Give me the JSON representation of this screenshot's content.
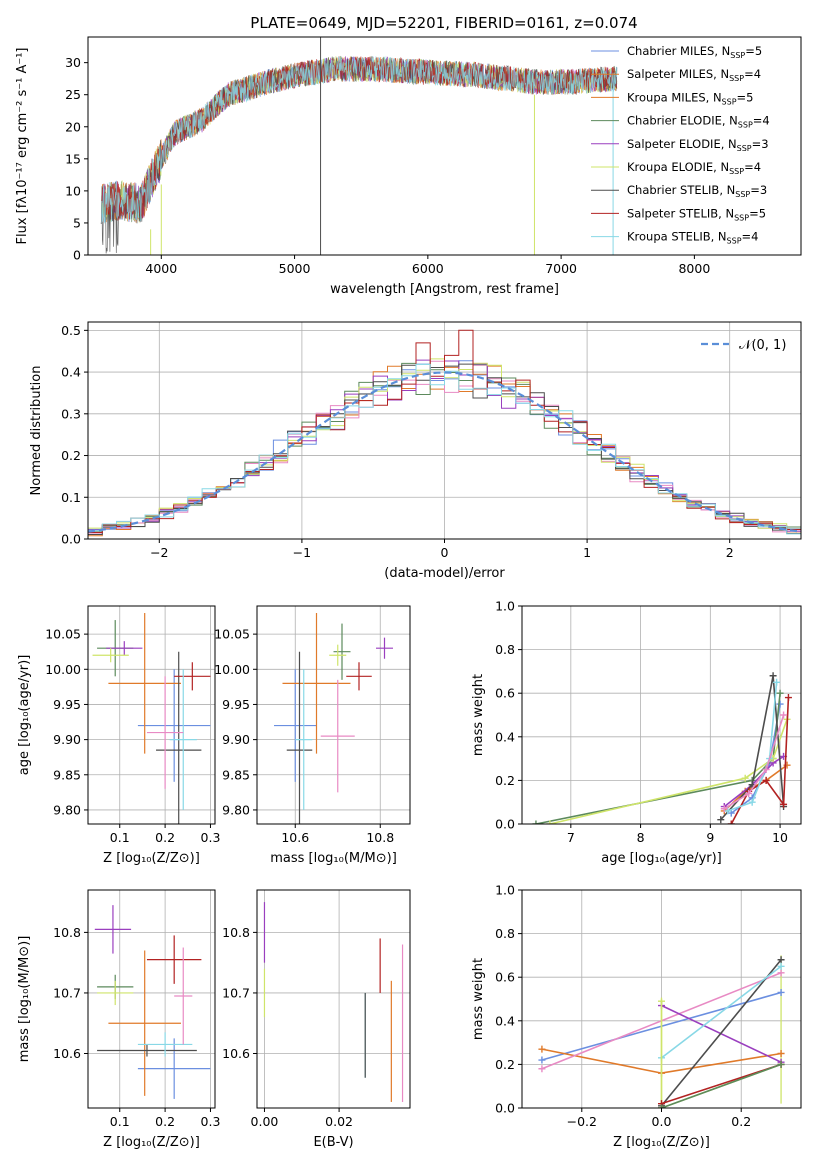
{
  "figure": {
    "title": "PLATE=0649, MJD=52201, FIBERID=0161, z=0.074"
  },
  "palette": {
    "models": [
      "#6b8fe0",
      "#e07a2a",
      "#e07a2a",
      "#5c8a5c",
      "#9a3fbf",
      "#cfe46a",
      "#4d4d4d",
      "#b22222",
      "#88d8e6"
    ],
    "extra": [
      "#e88ac4",
      "#999999"
    ],
    "gauss": "#5a8ed8",
    "grid": "#b0b0b0"
  },
  "chart_data": [
    {
      "id": "spectrum",
      "type": "line",
      "xlabel": "wavelength [Angstrom, rest frame]",
      "ylabel": "Flux [fλ10⁻¹⁷ erg cm⁻² s⁻¹ A⁻¹]",
      "xlim": [
        3450,
        8800
      ],
      "ylim": [
        0,
        34
      ],
      "xticks": [
        4000,
        5000,
        6000,
        7000,
        8000
      ],
      "yticks": [
        0,
        5,
        10,
        15,
        20,
        25,
        30
      ],
      "grid": false,
      "legend_position": "top-right",
      "legend": [
        {
          "label": "Chabrier MILES, N",
          "sub": "SSP",
          "value": "=5"
        },
        {
          "label": "Salpeter MILES, N",
          "sub": "SSP",
          "value": "=4"
        },
        {
          "label": "Kroupa MILES, N",
          "sub": "SSP",
          "value": "=5"
        },
        {
          "label": "Chabrier ELODIE, N",
          "sub": "SSP",
          "value": "=4"
        },
        {
          "label": "Salpeter ELODIE, N",
          "sub": "SSP",
          "value": "=3"
        },
        {
          "label": "Kroupa ELODIE, N",
          "sub": "SSP",
          "value": "=4"
        },
        {
          "label": "Chabrier STELIB, N",
          "sub": "SSP",
          "value": "=3"
        },
        {
          "label": "Salpeter STELIB, N",
          "sub": "SSP",
          "value": "=5"
        },
        {
          "label": "Kroupa STELIB, N",
          "sub": "SSP",
          "value": "=4"
        }
      ],
      "continuum_knots": [
        [
          3550,
          8
        ],
        [
          3700,
          8.5
        ],
        [
          3850,
          8
        ],
        [
          3950,
          13
        ],
        [
          4100,
          19
        ],
        [
          4300,
          21
        ],
        [
          4500,
          25
        ],
        [
          4800,
          27
        ],
        [
          5000,
          28
        ],
        [
          5300,
          29
        ],
        [
          5600,
          29
        ],
        [
          6000,
          28.5
        ],
        [
          6400,
          28
        ],
        [
          6800,
          27
        ],
        [
          7100,
          27
        ],
        [
          7400,
          27.5
        ]
      ]
    },
    {
      "id": "residuals",
      "type": "step",
      "xlabel": "(data-model)/error",
      "ylabel": "Normed distribution",
      "xlim": [
        -2.5,
        2.5
      ],
      "ylim": [
        0,
        0.52
      ],
      "xticks": [
        -2,
        -1,
        0,
        1,
        2
      ],
      "yticks": [
        0,
        0.1,
        0.2,
        0.3,
        0.4,
        0.5
      ],
      "grid": true,
      "legend_position": "top-right",
      "gauss_label": "𝒩(0, 1)",
      "bin_width": 0.1,
      "peak_spikes": {
        "0.15": 0.5,
        "-0.15": 0.47,
        "0.05": 0.44
      }
    },
    {
      "id": "age_vs_Z",
      "type": "errorbar",
      "xlabel": "Z [log₁₀(Z/Z⊙)]",
      "ylabel": "age  [log₁₀(age/yr)]",
      "xlim": [
        0.03,
        0.31
      ],
      "ylim": [
        9.78,
        10.09
      ],
      "xticks": [
        0.1,
        0.2,
        0.3
      ],
      "yticks": [
        9.8,
        9.85,
        9.9,
        9.95,
        10.0,
        10.05
      ],
      "grid": true,
      "points": [
        {
          "x": 0.22,
          "y": 9.92,
          "xerr": 0.08,
          "yerr": 0.08,
          "c": 0
        },
        {
          "x": 0.155,
          "y": 9.98,
          "xerr": 0.08,
          "yerr": 0.1,
          "c": 1
        },
        {
          "x": 0.09,
          "y": 10.03,
          "xerr": 0.04,
          "yerr": 0.04,
          "c": 3
        },
        {
          "x": 0.11,
          "y": 10.03,
          "xerr": 0.04,
          "yerr": 0.01,
          "c": 4
        },
        {
          "x": 0.08,
          "y": 10.02,
          "xerr": 0.04,
          "yerr": 0.01,
          "c": 5
        },
        {
          "x": 0.23,
          "y": 9.885,
          "xerr": 0.05,
          "yerr": 0.14,
          "c": 6
        },
        {
          "x": 0.26,
          "y": 9.99,
          "xerr": 0.04,
          "yerr": 0.02,
          "c": 7
        },
        {
          "x": 0.24,
          "y": 9.9,
          "xerr": 0.03,
          "yerr": 0.1,
          "c": 8
        },
        {
          "x": 0.2,
          "y": 9.91,
          "xerr": 0.04,
          "yerr": 0.08,
          "c": 9
        }
      ]
    },
    {
      "id": "age_vs_mass",
      "type": "errorbar",
      "xlabel": "mass [log₁₀(M/M⊙)]",
      "ylabel": "",
      "xlim": [
        10.51,
        10.87
      ],
      "ylim": [
        9.78,
        10.09
      ],
      "xticks": [
        10.6,
        10.8
      ],
      "yticks": [
        9.8,
        9.85,
        9.9,
        9.95,
        10.0,
        10.05
      ],
      "grid": true,
      "points": [
        {
          "x": 10.6,
          "y": 9.92,
          "xerr": 0.05,
          "yerr": 0.08,
          "c": 0
        },
        {
          "x": 10.65,
          "y": 9.98,
          "xerr": 0.08,
          "yerr": 0.1,
          "c": 1
        },
        {
          "x": 10.71,
          "y": 10.025,
          "xerr": 0.02,
          "yerr": 0.04,
          "c": 3
        },
        {
          "x": 10.81,
          "y": 10.03,
          "xerr": 0.02,
          "yerr": 0.015,
          "c": 4
        },
        {
          "x": 10.7,
          "y": 10.02,
          "xerr": 0.02,
          "yerr": 0.015,
          "c": 5
        },
        {
          "x": 10.61,
          "y": 9.885,
          "xerr": 0.03,
          "yerr": 0.14,
          "c": 6
        },
        {
          "x": 10.75,
          "y": 9.99,
          "xerr": 0.03,
          "yerr": 0.02,
          "c": 7
        },
        {
          "x": 10.62,
          "y": 9.9,
          "xerr": 0.02,
          "yerr": 0.1,
          "c": 8
        },
        {
          "x": 10.7,
          "y": 9.905,
          "xerr": 0.04,
          "yerr": 0.08,
          "c": 9
        }
      ]
    },
    {
      "id": "massweight_vs_age",
      "type": "line",
      "xlabel": "age  [log₁₀(age/yr)]",
      "ylabel": "mass weight",
      "xlim": [
        6.3,
        10.3
      ],
      "ylim": [
        0,
        1.0
      ],
      "xticks": [
        7,
        8,
        9,
        10
      ],
      "yticks": [
        0,
        0.2,
        0.4,
        0.6,
        0.8,
        1.0
      ],
      "grid": true,
      "series": [
        {
          "c": 0,
          "x": [
            9.3,
            9.6,
            9.85,
            10.0
          ],
          "y": [
            0.05,
            0.12,
            0.28,
            0.55
          ]
        },
        {
          "c": 1,
          "x": [
            9.2,
            9.5,
            9.8,
            10.1
          ],
          "y": [
            0.06,
            0.15,
            0.2,
            0.27
          ]
        },
        {
          "c": 3,
          "x": [
            6.5,
            9.6,
            9.9,
            10.0
          ],
          "y": [
            0.0,
            0.2,
            0.3,
            0.6
          ]
        },
        {
          "c": 4,
          "x": [
            9.2,
            9.6,
            9.9,
            10.05
          ],
          "y": [
            0.08,
            0.18,
            0.28,
            0.31
          ]
        },
        {
          "c": 5,
          "x": [
            6.7,
            9.5,
            9.9,
            10.1
          ],
          "y": [
            0.0,
            0.21,
            0.3,
            0.48
          ]
        },
        {
          "c": 6,
          "x": [
            9.15,
            9.6,
            9.9,
            10.05
          ],
          "y": [
            0.02,
            0.18,
            0.68,
            0.08
          ]
        },
        {
          "c": 7,
          "x": [
            9.3,
            9.55,
            9.8,
            10.05,
            10.12
          ],
          "y": [
            0.0,
            0.15,
            0.2,
            0.09,
            0.58
          ]
        },
        {
          "c": 8,
          "x": [
            9.25,
            9.6,
            9.85,
            9.95
          ],
          "y": [
            0.06,
            0.1,
            0.3,
            0.65
          ]
        },
        {
          "c": 9,
          "x": [
            9.2,
            9.55,
            9.8,
            10.05
          ],
          "y": [
            0.07,
            0.14,
            0.25,
            0.5
          ]
        }
      ]
    },
    {
      "id": "mass_vs_Z",
      "type": "errorbar",
      "xlabel": "Z [log₁₀(Z/Z⊙)]",
      "ylabel": "mass [log₁₀(M/M⊙)]",
      "xlim": [
        0.03,
        0.31
      ],
      "ylim": [
        10.51,
        10.87
      ],
      "xticks": [
        0.1,
        0.2,
        0.3
      ],
      "yticks": [
        10.6,
        10.7,
        10.8
      ],
      "grid": true,
      "points": [
        {
          "x": 0.22,
          "y": 10.575,
          "xerr": 0.08,
          "yerr": 0.05,
          "c": 0
        },
        {
          "x": 0.155,
          "y": 10.65,
          "xerr": 0.08,
          "yerr": 0.12,
          "c": 1
        },
        {
          "x": 0.09,
          "y": 10.71,
          "xerr": 0.04,
          "yerr": 0.02,
          "c": 3
        },
        {
          "x": 0.085,
          "y": 10.805,
          "xerr": 0.04,
          "yerr": 0.04,
          "c": 4
        },
        {
          "x": 0.09,
          "y": 10.7,
          "xerr": 0.04,
          "yerr": 0.02,
          "c": 5
        },
        {
          "x": 0.16,
          "y": 10.605,
          "xerr": 0.11,
          "yerr": 0.01,
          "c": 6
        },
        {
          "x": 0.22,
          "y": 10.755,
          "xerr": 0.06,
          "yerr": 0.04,
          "c": 7
        },
        {
          "x": 0.2,
          "y": 10.615,
          "xerr": 0.06,
          "yerr": 0.02,
          "c": 8
        },
        {
          "x": 0.24,
          "y": 10.695,
          "xerr": 0.02,
          "yerr": 0.08,
          "c": 9
        }
      ]
    },
    {
      "id": "mass_vs_EBV",
      "type": "errorbar",
      "xlabel": "E(B-V)",
      "ylabel": "",
      "xlim": [
        -0.002,
        0.039
      ],
      "ylim": [
        10.51,
        10.87
      ],
      "xticks": [
        0.0,
        0.02
      ],
      "yticks": [
        10.6,
        10.7,
        10.8
      ],
      "grid": true,
      "points": [
        {
          "x": 0.0,
          "y": 10.8,
          "xerr": 0,
          "yerr": 0.05,
          "c": 4
        },
        {
          "x": 0.0,
          "y": 10.7,
          "xerr": 0,
          "yerr": 0.04,
          "c": 5
        },
        {
          "x": 0.027,
          "y": 10.63,
          "xerr": 0,
          "yerr": 0.07,
          "c": 8
        },
        {
          "x": 0.027,
          "y": 10.63,
          "xerr": 0,
          "yerr": 0.07,
          "c": 6
        },
        {
          "x": 0.031,
          "y": 10.745,
          "xerr": 0,
          "yerr": 0.045,
          "c": 7
        },
        {
          "x": 0.034,
          "y": 10.62,
          "xerr": 0,
          "yerr": 0.1,
          "c": 1
        },
        {
          "x": 0.037,
          "y": 10.65,
          "xerr": 0,
          "yerr": 0.13,
          "c": 9
        }
      ]
    },
    {
      "id": "massweight_vs_Z",
      "type": "line",
      "xlabel": "Z [log₁₀(Z/Z⊙)]",
      "ylabel": "mass weight",
      "xlim": [
        -0.35,
        0.35
      ],
      "ylim": [
        0,
        1.0
      ],
      "xticks": [
        -0.2,
        0.0,
        0.2
      ],
      "yticks": [
        0,
        0.2,
        0.4,
        0.6,
        0.8,
        1.0
      ],
      "grid": true,
      "series": [
        {
          "c": 0,
          "x": [
            -0.3,
            0.3
          ],
          "y": [
            0.22,
            0.53
          ]
        },
        {
          "c": 1,
          "x": [
            -0.3,
            0.0,
            0.3
          ],
          "y": [
            0.27,
            0.16,
            0.25
          ]
        },
        {
          "c": 9,
          "x": [
            -0.3,
            0.3
          ],
          "y": [
            0.18,
            0.62
          ]
        },
        {
          "c": 4,
          "x": [
            0.0,
            0.3
          ],
          "y": [
            0.47,
            0.21
          ]
        },
        {
          "c": 6,
          "x": [
            0.0,
            0.3
          ],
          "y": [
            0.01,
            0.68
          ]
        },
        {
          "c": 8,
          "x": [
            0.0,
            0.3
          ],
          "y": [
            0.23,
            0.65
          ]
        },
        {
          "c": 5,
          "x": [
            0.0,
            0.0,
            0.3
          ],
          "y": [
            0.49,
            0.0,
            0.2
          ]
        },
        {
          "c": 7,
          "x": [
            0.0,
            0.3
          ],
          "y": [
            0.02,
            0.2
          ]
        },
        {
          "c": 3,
          "x": [
            0.0,
            0.3
          ],
          "y": [
            0.0,
            0.2
          ]
        }
      ],
      "vertical_ticks": [
        {
          "x": 0.0,
          "y": [
            0.0,
            0.5
          ]
        },
        {
          "x": 0.3,
          "y": [
            0.02,
            0.7
          ]
        }
      ]
    }
  ]
}
